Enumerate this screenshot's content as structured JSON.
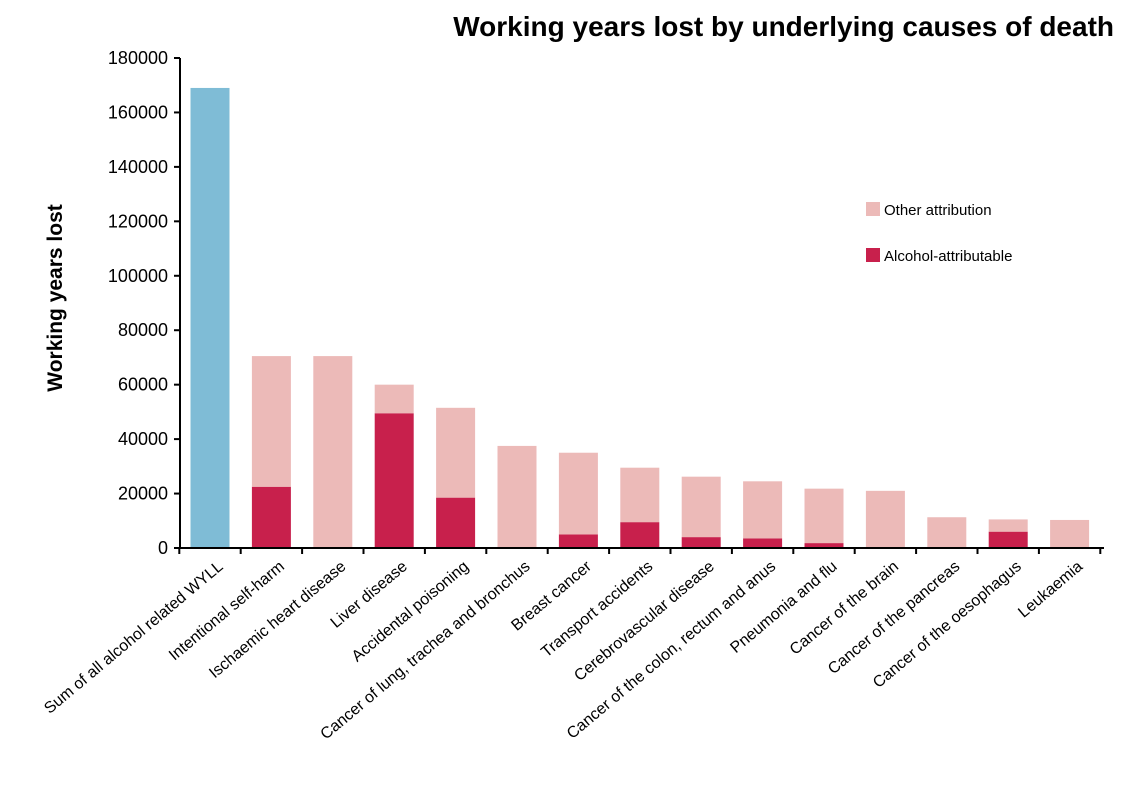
{
  "chart_data": {
    "type": "bar",
    "stacked": true,
    "title": "Working years lost by underlying causes of death",
    "xlabel": "",
    "ylabel": "Working years lost",
    "ylim": [
      0,
      180000
    ],
    "yticks": [
      0,
      20000,
      40000,
      60000,
      80000,
      100000,
      120000,
      140000,
      160000,
      180000
    ],
    "grid": false,
    "legend_position": "right",
    "categories": [
      "Sum of all alcohol related WYLL",
      "Intentional self-harm",
      "Ischaemic heart disease",
      "Liver disease",
      "Accidental poisoning",
      "Cancer of lung, trachea and bronchus",
      "Breast cancer",
      "Transport accidents",
      "Cerebrovascular disease",
      "Cancer of the colon, rectum and anus",
      "Pneumonia and flu",
      "Cancer of the brain",
      "Cancer of the pancreas",
      "Cancer of the oesophagus",
      "Leukaemia"
    ],
    "total": {
      "values": [
        169000,
        null,
        null,
        null,
        null,
        null,
        null,
        null,
        null,
        null,
        null,
        null,
        null,
        null,
        null
      ],
      "color": "#7fbcd6"
    },
    "series": [
      {
        "name": "Alcohol-attributable",
        "color": "#c8204c",
        "values": [
          0,
          22500,
          0,
          49500,
          18500,
          0,
          5000,
          9500,
          4000,
          3500,
          1800,
          0,
          0,
          6000,
          0
        ]
      },
      {
        "name": "Other attribution",
        "color": "#ecbab8",
        "values": [
          0,
          48000,
          70500,
          10500,
          33000,
          37500,
          30000,
          20000,
          22200,
          21000,
          20000,
          21000,
          11300,
          4500,
          10300
        ]
      }
    ],
    "legend": [
      {
        "name": "Other attribution",
        "color": "#ecbab8"
      },
      {
        "name": "Alcohol-attributable",
        "color": "#c8204c"
      }
    ]
  }
}
